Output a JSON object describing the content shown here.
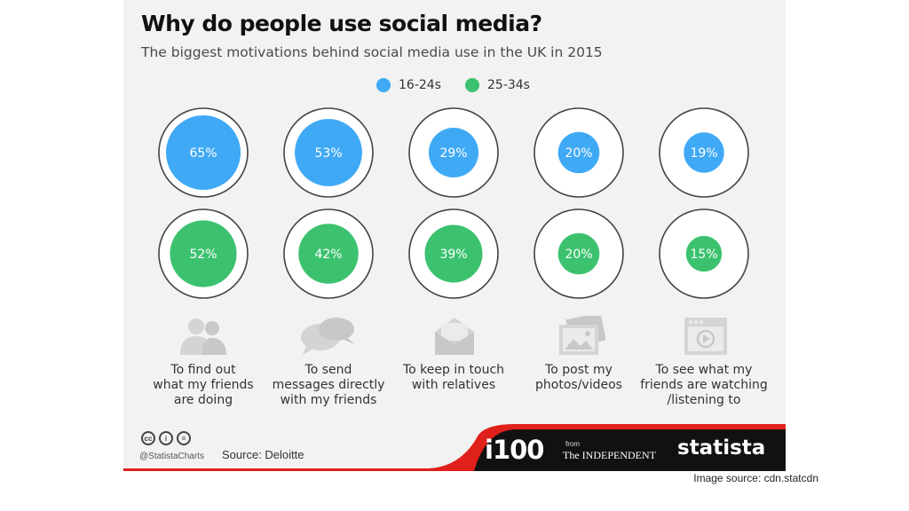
{
  "title": "Why do people use social media?",
  "subtitle": "The biggest motivations behind social media use in the UK in 2015",
  "chart_data": {
    "type": "bubble",
    "title": "Why do people use social media?",
    "subtitle": "The biggest motivations behind social media use in the UK in 2015",
    "categories": [
      "To find out\nwhat my friends\nare doing",
      "To send\nmessages directly\nwith my friends",
      "To keep in touch\nwith relatives",
      "To post my\nphotos/videos",
      "To see what my\nfriends are watching\n/listening to"
    ],
    "series": [
      {
        "name": "16-24s",
        "values": [
          65,
          53,
          29,
          20,
          19
        ],
        "labels": [
          "65%",
          "53%",
          "29%",
          "20%",
          "19%"
        ],
        "color": "#3fa9f5"
      },
      {
        "name": "25-34s",
        "values": [
          52,
          42,
          39,
          20,
          15
        ],
        "labels": [
          "52%",
          "42%",
          "39%",
          "20%",
          "15%"
        ],
        "color": "#3cc26f"
      }
    ],
    "unit": "%",
    "legend_position": "top-center",
    "max_value": 100
  },
  "icons": [
    "friends-icon",
    "speech-bubbles-icon",
    "envelope-icon",
    "photos-icon",
    "video-player-icon"
  ],
  "footer": {
    "handle": "@StatistaCharts",
    "source": "Source: Deloitte",
    "brand_i100": "i100",
    "brand_from": "from",
    "brand_independent": "The INDEPENDENT",
    "brand_statista": "statista"
  },
  "image_source": "Image source: cdn.statcdn",
  "colors": {
    "background": "#f2f2f2",
    "footer_dark": "#111111",
    "footer_accent": "#e0201b",
    "ring": "#444444"
  }
}
